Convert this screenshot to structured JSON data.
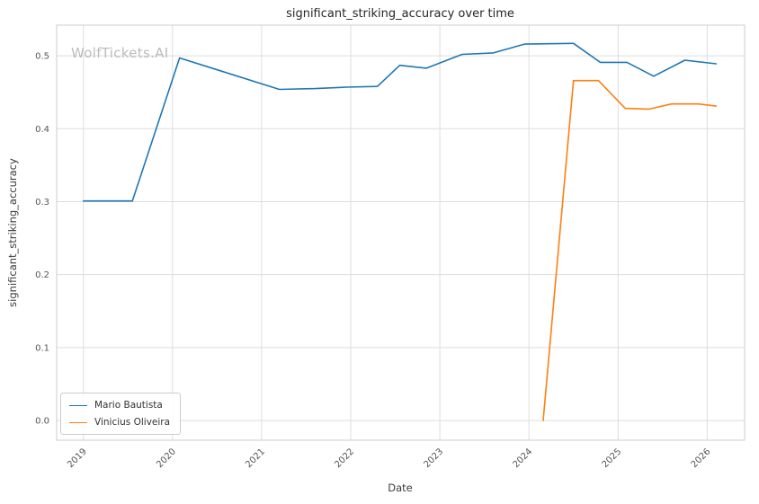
{
  "watermark": "WolfTickets.AI",
  "chart_data": {
    "type": "line",
    "title": "significant_striking_accuracy over time",
    "xlabel": "Date",
    "ylabel": "significant_striking_accuracy",
    "grid": true,
    "legend_position": "lower left",
    "xlim": [
      2018.7,
      2026.42
    ],
    "ylim": [
      -0.027,
      0.542
    ],
    "x_ticks": [
      2019,
      2020,
      2021,
      2022,
      2023,
      2024,
      2025,
      2026
    ],
    "x_tick_labels": [
      "2019",
      "2020",
      "2021",
      "2022",
      "2023",
      "2024",
      "2025",
      "2026"
    ],
    "y_ticks": [
      0.0,
      0.1,
      0.2,
      0.3,
      0.4,
      0.5
    ],
    "y_tick_labels": [
      "0.0",
      "0.1",
      "0.2",
      "0.3",
      "0.4",
      "0.5"
    ],
    "colors": {
      "grid": "#dddddd",
      "spine": "#cccccc",
      "tick_text": "#555555",
      "title_text": "#262626",
      "background": "#ffffff"
    },
    "series": [
      {
        "name": "Mario Bautista",
        "color": "#1f77b4",
        "x": [
          2019.0,
          2019.55,
          2020.08,
          2020.55,
          2021.2,
          2021.6,
          2021.95,
          2022.3,
          2022.55,
          2022.85,
          2023.25,
          2023.6,
          2023.95,
          2024.5,
          2024.8,
          2025.1,
          2025.4,
          2025.75,
          2026.1
        ],
        "y": [
          0.301,
          0.301,
          0.497,
          0.479,
          0.454,
          0.455,
          0.457,
          0.458,
          0.487,
          0.483,
          0.502,
          0.504,
          0.516,
          0.517,
          0.491,
          0.491,
          0.472,
          0.494,
          0.489
        ]
      },
      {
        "name": "Vinicius Oliveira",
        "color": "#ff7f0e",
        "x": [
          2024.16,
          2024.5,
          2024.78,
          2025.08,
          2025.35,
          2025.6,
          2025.9,
          2026.1
        ],
        "y": [
          0.0,
          0.466,
          0.466,
          0.428,
          0.427,
          0.434,
          0.434,
          0.431
        ]
      }
    ]
  }
}
